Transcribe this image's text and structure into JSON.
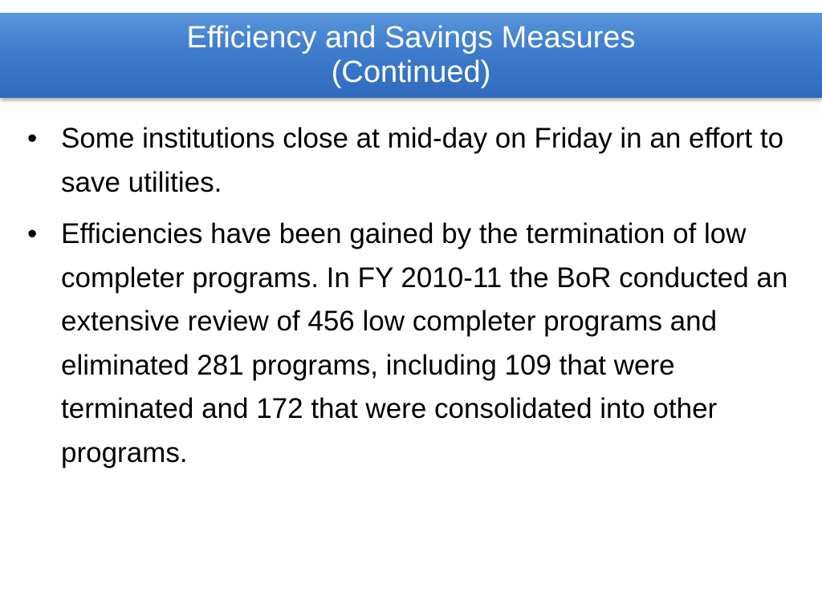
{
  "title": {
    "line1": "Efficiency and Savings Measures",
    "line2": "(Continued)"
  },
  "bullets": [
    {
      "mark": "•",
      "text": "Some institutions close at mid-day on Friday in an effort to save utilities."
    },
    {
      "mark": "•",
      "text": "Efficiencies have been gained by the termination of low completer programs.  In FY 2010-11 the BoR conducted an extensive review of 456 low completer programs and eliminated  281 programs, including 109 that were terminated and 172 that were consolidated into other programs."
    }
  ],
  "colors": {
    "title_bar": "#3e7ccc",
    "title_text": "#ffffff",
    "body_text": "#000000"
  }
}
